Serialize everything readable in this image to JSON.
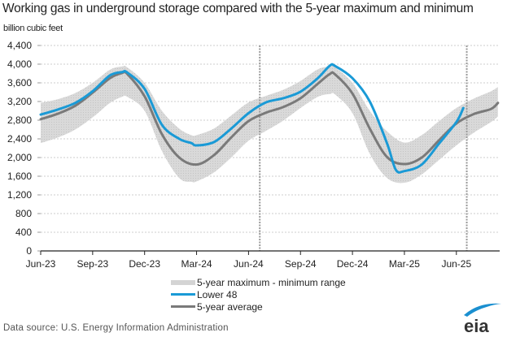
{
  "chart_data": {
    "type": "line",
    "title": "Working gas in underground  storage compared with the 5-year maximum and minimum",
    "ylabel": "billion cubic feet",
    "xlabel": "",
    "ylim": [
      0,
      4400
    ],
    "yticks": [
      0,
      400,
      800,
      1200,
      1600,
      2000,
      2400,
      2800,
      3200,
      3600,
      4000,
      4400
    ],
    "ytick_labels": [
      "0",
      "400",
      "800",
      "1,200",
      "1,600",
      "2,000",
      "2,400",
      "2,800",
      "3,200",
      "3,600",
      "4,000",
      "4,400"
    ],
    "x_unit": "months since Jun-23",
    "xlim": [
      0,
      26.5
    ],
    "xticks": [
      0,
      3,
      6,
      9,
      12,
      15,
      18,
      21,
      24
    ],
    "xtick_labels": [
      "Jun-23",
      "Sep-23",
      "Dec-23",
      "Mar-24",
      "Jun-24",
      "Sep-24",
      "Dec-24",
      "Mar-25",
      "Jun-25"
    ],
    "grid": true,
    "reference_lines_x": [
      12.65,
      24.6
    ],
    "legend_position": "bottom-center",
    "band": {
      "name": "5-year maximum - minimum range",
      "x": [
        0,
        1,
        2,
        3,
        4,
        4.7,
        5,
        6,
        7,
        8,
        8.7,
        9,
        10,
        11,
        12,
        13,
        14,
        15,
        16,
        16.7,
        17,
        18,
        19,
        20,
        21,
        22,
        23,
        24,
        25,
        26,
        26.4
      ],
      "upper": [
        3170,
        3250,
        3380,
        3600,
        3880,
        3950,
        3930,
        3600,
        3000,
        2620,
        2480,
        2480,
        2620,
        2900,
        3180,
        3320,
        3450,
        3640,
        3890,
        3950,
        3930,
        3600,
        3000,
        2560,
        2320,
        2480,
        2780,
        3060,
        3260,
        3420,
        3510
      ],
      "lower": [
        2310,
        2430,
        2600,
        2860,
        3170,
        3300,
        3300,
        3000,
        2140,
        1560,
        1480,
        1490,
        1680,
        2000,
        2360,
        2570,
        2790,
        3060,
        3300,
        3360,
        3350,
        2950,
        2080,
        1560,
        1460,
        1640,
        1950,
        2260,
        2530,
        2760,
        2880
      ]
    },
    "series": [
      {
        "name": "Lower 48",
        "color": "#1a9ad6",
        "x": [
          0,
          1,
          2,
          3,
          4,
          4.7,
          5,
          6,
          7,
          8,
          8.7,
          9,
          10,
          11,
          12,
          13,
          14,
          15,
          16,
          16.7,
          17,
          18,
          19,
          20,
          20.5,
          21,
          22,
          23,
          24,
          24.4
        ],
        "values": [
          2920,
          3030,
          3170,
          3420,
          3760,
          3830,
          3820,
          3470,
          2700,
          2400,
          2310,
          2260,
          2330,
          2620,
          2950,
          3180,
          3270,
          3410,
          3700,
          3970,
          3960,
          3700,
          3200,
          2300,
          1740,
          1710,
          1850,
          2300,
          2760,
          3060
        ]
      },
      {
        "name": "5-year average",
        "color": "#7a7a7a",
        "x": [
          0,
          1,
          2,
          3,
          4,
          4.7,
          5,
          6,
          7,
          8,
          9,
          10,
          11,
          12,
          13,
          14,
          15,
          16,
          16.7,
          17,
          18,
          19,
          20,
          21,
          22,
          23,
          24,
          25,
          26,
          26.4
        ],
        "values": [
          2820,
          2940,
          3110,
          3390,
          3700,
          3810,
          3790,
          3310,
          2500,
          2000,
          1850,
          2050,
          2430,
          2780,
          2960,
          3080,
          3270,
          3580,
          3790,
          3780,
          3370,
          2620,
          2010,
          1860,
          2000,
          2370,
          2730,
          2930,
          3040,
          3170
        ]
      }
    ]
  },
  "header": {
    "title": "Working gas in underground  storage compared with the 5-year maximum and minimum",
    "y_unit": "billion cubic feet"
  },
  "legend": {
    "items": [
      {
        "label": "5-year maximum - minimum range",
        "type": "band"
      },
      {
        "label": "Lower 48",
        "type": "line"
      },
      {
        "label": "5-year average",
        "type": "line"
      }
    ]
  },
  "footer": {
    "source": "Data source:  U.S. Energy Information Administration",
    "logo_text": "eia"
  }
}
